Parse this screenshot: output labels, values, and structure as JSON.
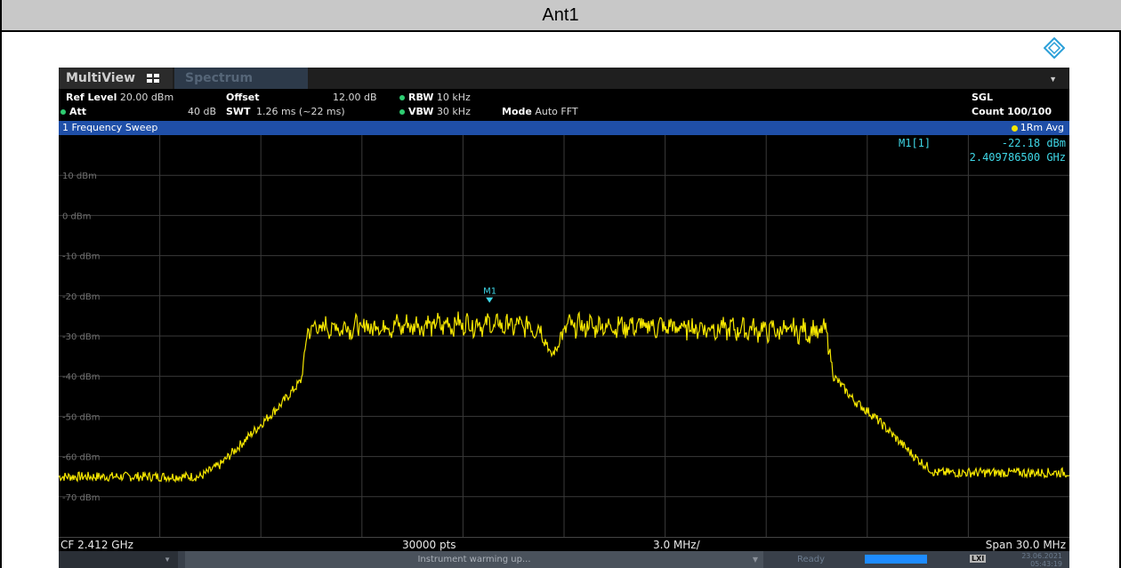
{
  "header": {
    "title": "Ant1"
  },
  "tabs": {
    "multiview": "MultiView",
    "spectrum": "Spectrum"
  },
  "params": {
    "ref_level_label": "Ref Level",
    "ref_level_value": "20.00 dBm",
    "offset_label": "Offset",
    "offset_value": "12.00 dB",
    "rbw_label": "RBW",
    "rbw_value": "10 kHz",
    "att_label": "Att",
    "att_value": "40 dB",
    "swt_label": "SWT",
    "swt_value": "1.26 ms (~22 ms)",
    "vbw_label": "VBW",
    "vbw_value": "30 kHz",
    "mode_label": "Mode",
    "mode_value": "Auto FFT",
    "sgl": "SGL",
    "count_label": "Count",
    "count_value": "100/100"
  },
  "sweep": {
    "label": "1 Frequency Sweep",
    "avg": "1Rm Avg"
  },
  "marker": {
    "name": "M1[1]",
    "level": "-22.18 dBm",
    "freq": "2.409786500 GHz",
    "label": "M1"
  },
  "footer": {
    "cf": "CF 2.412 GHz",
    "pts": "30000 pts",
    "div": "3.0 MHz/",
    "span": "Span 30.0 MHz"
  },
  "status": {
    "message": "Instrument warming up...",
    "ready": "Ready",
    "date": "23.06.2021",
    "time": "05:43:19",
    "lxi": "LXI"
  },
  "colors": {
    "trace": "#f5e600",
    "grid": "#3a3a3a",
    "sweep_bar": "#1f4fa8",
    "marker": "#3fd8e8"
  },
  "chart_data": {
    "type": "line",
    "xlabel": "",
    "ylabel": "",
    "xlim": [
      2397,
      2427
    ],
    "ylim": [
      -80,
      20
    ],
    "y_ticks": [
      "10 dBm",
      "0 dBm",
      "-10 dBm",
      "-20 dBm",
      "-30 dBm",
      "-40 dBm",
      "-50 dBm",
      "-60 dBm",
      "-70 dBm"
    ],
    "y_tick_values": [
      10,
      0,
      -10,
      -20,
      -30,
      -40,
      -50,
      -60,
      -70
    ],
    "grid": true,
    "series": [
      {
        "x": [
          2397.0,
          2401.2,
          2401.8,
          2402.4,
          2403.0,
          2403.6,
          2404.2,
          2404.4,
          2405.0,
          2407.0,
          2409.0,
          2411.0,
          2411.4,
          2411.6,
          2411.8,
          2412.0,
          2412.2,
          2414.0,
          2416.0,
          2418.0,
          2419.8,
          2420.0,
          2420.6,
          2421.2,
          2421.8,
          2422.4,
          2423.0,
          2427.0
        ],
        "y": [
          -65,
          -65,
          -62,
          -57,
          -52,
          -47,
          -41,
          -28,
          -28,
          -27.5,
          -27,
          -27.5,
          -29,
          -35,
          -33,
          -28,
          -27.5,
          -27.5,
          -28,
          -28.5,
          -29,
          -40,
          -46,
          -50,
          -55,
          -60,
          -64,
          -64
        ]
      }
    ],
    "marker": {
      "x": 2409.7865,
      "y": -22.18
    }
  }
}
